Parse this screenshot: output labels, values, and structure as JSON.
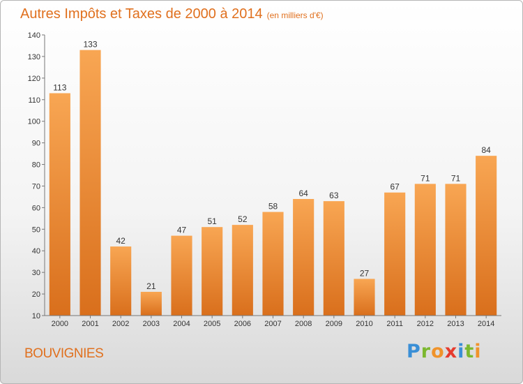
{
  "title": "Autres Impôts et Taxes de 2000 à 2014",
  "subtitle": "(en milliers d'€)",
  "commune": "BOUVIGNIES",
  "brand": {
    "letters": [
      "P",
      "r",
      "o",
      "x",
      "i",
      "t",
      "i"
    ],
    "colors": [
      "#3a8fd6",
      "#7cb82f",
      "#f0932b",
      "#e63b2e",
      "#3a8fd6",
      "#7cb82f",
      "#f0932b"
    ]
  },
  "colors": {
    "bar_light": "#f8a653",
    "bar_dark": "#d96f1c",
    "accent": "#e0701e"
  },
  "chart_data": {
    "type": "bar",
    "categories": [
      "2000",
      "2001",
      "2002",
      "2003",
      "2004",
      "2005",
      "2006",
      "2007",
      "2008",
      "2009",
      "2010",
      "2011",
      "2012",
      "2013",
      "2014"
    ],
    "values": [
      113,
      133,
      42,
      21,
      47,
      51,
      52,
      58,
      64,
      63,
      27,
      67,
      71,
      71,
      84
    ],
    "yticks": [
      10,
      20,
      30,
      40,
      50,
      60,
      70,
      80,
      90,
      100,
      110,
      120,
      130,
      140
    ],
    "ylim": [
      10,
      140
    ],
    "grid": false,
    "title": "Autres Impôts et Taxes de 2000 à 2014",
    "subtitle": "(en milliers d'€)"
  }
}
